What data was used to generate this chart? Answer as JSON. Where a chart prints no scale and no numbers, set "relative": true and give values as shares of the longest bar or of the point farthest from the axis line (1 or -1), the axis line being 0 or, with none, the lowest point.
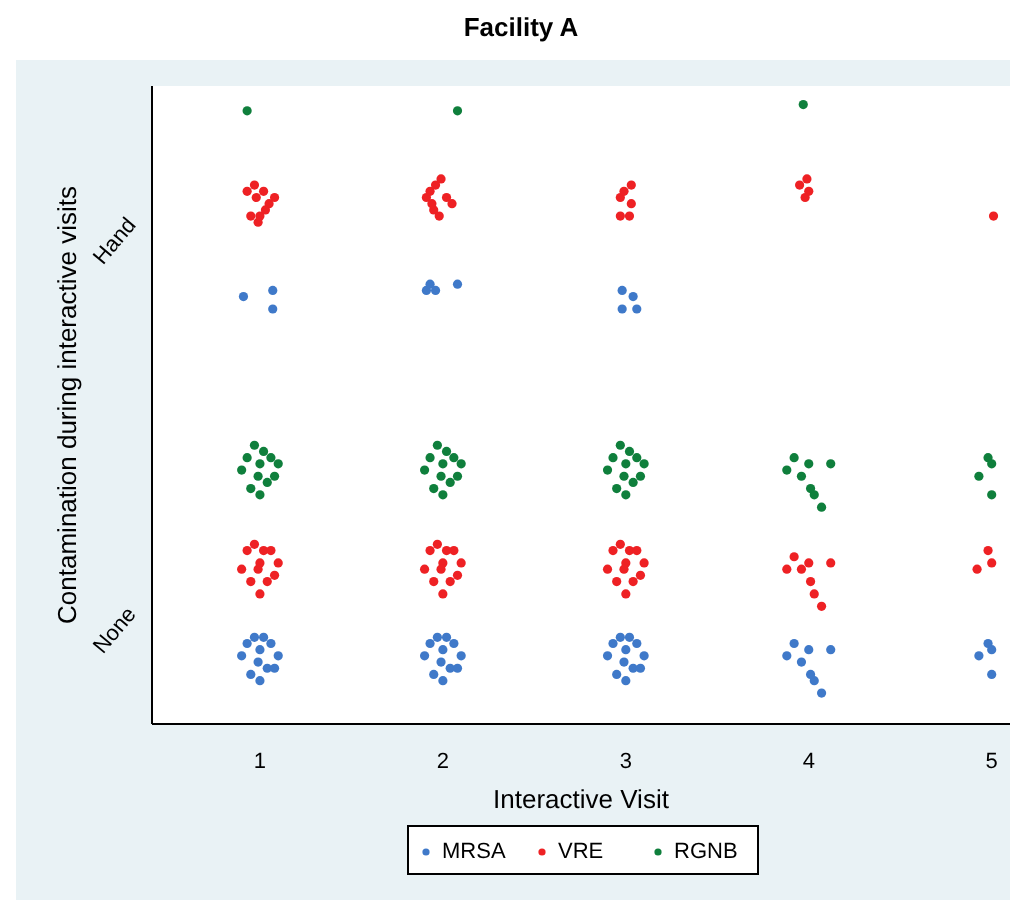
{
  "chart_data": {
    "type": "scatter",
    "title": "Facility A",
    "xlabel": "Interactive Visit",
    "ylabel": "Contamination during interactive visits",
    "xlim": [
      0.41,
      5.1
    ],
    "xticks": [
      1,
      2,
      3,
      4,
      5
    ],
    "relative": true,
    "annotations": [
      "None",
      "Hand"
    ],
    "grid": false,
    "legend": "bottom",
    "marker": "circle",
    "series": [
      {
        "name": "MRSA",
        "color": "#3f79c9",
        "x": [
          0.9,
          0.93,
          0.95,
          0.97,
          1,
          1,
          1.02,
          1.04,
          1.06,
          1.08,
          1.1,
          0.99,
          1.9,
          1.93,
          1.95,
          1.97,
          2,
          2,
          2.02,
          2.04,
          2.06,
          2.08,
          2.1,
          1.99,
          2.9,
          2.93,
          2.95,
          2.97,
          3,
          3,
          3.02,
          3.04,
          3.06,
          3.08,
          3.1,
          2.99,
          3.88,
          3.92,
          3.96,
          4,
          4.03,
          4.07,
          4.12,
          4.01,
          4.93,
          4.98,
          5,
          5,
          0.91,
          1.07,
          1.07,
          1.91,
          1.93,
          1.96,
          2.08,
          2.98,
          3.04,
          3.06,
          2.98
        ],
        "values": [
          0.11,
          0.13,
          0.08,
          0.14,
          0.12,
          0.07,
          0.14,
          0.09,
          0.13,
          0.09,
          0.11,
          0.1,
          0.11,
          0.13,
          0.08,
          0.14,
          0.12,
          0.07,
          0.14,
          0.09,
          0.13,
          0.09,
          0.11,
          0.1,
          0.11,
          0.13,
          0.08,
          0.14,
          0.12,
          0.07,
          0.14,
          0.09,
          0.13,
          0.09,
          0.11,
          0.1,
          0.11,
          0.13,
          0.1,
          0.12,
          0.07,
          0.05,
          0.12,
          0.08,
          0.11,
          0.13,
          0.12,
          0.08,
          0.69,
          0.7,
          0.67,
          0.7,
          0.71,
          0.7,
          0.71,
          0.7,
          0.69,
          0.67,
          0.67
        ]
      },
      {
        "name": "VRE",
        "color": "#ee2124",
        "x": [
          0.9,
          0.93,
          0.95,
          0.97,
          1,
          1,
          1.02,
          1.04,
          1.06,
          1.08,
          1.1,
          0.99,
          1.9,
          1.93,
          1.95,
          1.97,
          2,
          2,
          2.02,
          2.04,
          2.06,
          2.08,
          2.1,
          1.99,
          2.9,
          2.93,
          2.95,
          2.97,
          3,
          3,
          3.02,
          3.04,
          3.06,
          3.08,
          3.1,
          2.99,
          3.88,
          3.92,
          3.96,
          4,
          4.03,
          4.07,
          4.12,
          4.01,
          4.92,
          4.98,
          5,
          0.93,
          0.97,
          0.98,
          1.02,
          1.05,
          1.08,
          1,
          0.95,
          0.99,
          1.03,
          1.91,
          1.93,
          1.96,
          1.99,
          2.02,
          2.05,
          1.95,
          1.98,
          1.94,
          2.97,
          2.99,
          3.03,
          3.03,
          2.97,
          3.02,
          3.95,
          3.99,
          3.98,
          4,
          5.01
        ],
        "values": [
          0.25,
          0.28,
          0.23,
          0.29,
          0.26,
          0.21,
          0.28,
          0.23,
          0.28,
          0.24,
          0.26,
          0.25,
          0.25,
          0.28,
          0.23,
          0.29,
          0.26,
          0.21,
          0.28,
          0.23,
          0.28,
          0.24,
          0.26,
          0.25,
          0.25,
          0.28,
          0.23,
          0.29,
          0.26,
          0.21,
          0.28,
          0.23,
          0.28,
          0.24,
          0.26,
          0.25,
          0.25,
          0.27,
          0.25,
          0.26,
          0.21,
          0.19,
          0.26,
          0.23,
          0.25,
          0.28,
          0.26,
          0.86,
          0.87,
          0.85,
          0.86,
          0.84,
          0.85,
          0.82,
          0.82,
          0.81,
          0.83,
          0.85,
          0.86,
          0.87,
          0.88,
          0.85,
          0.84,
          0.83,
          0.82,
          0.84,
          0.85,
          0.86,
          0.87,
          0.84,
          0.82,
          0.82,
          0.87,
          0.88,
          0.85,
          0.86,
          0.82
        ]
      },
      {
        "name": "RGNB",
        "color": "#0f7f3c",
        "x": [
          0.9,
          0.93,
          0.95,
          0.97,
          1,
          1,
          1.02,
          1.04,
          1.06,
          1.08,
          1.1,
          0.99,
          1.9,
          1.93,
          1.95,
          1.97,
          2,
          2,
          2.02,
          2.04,
          2.06,
          2.08,
          2.1,
          1.99,
          2.9,
          2.93,
          2.95,
          2.97,
          3,
          3,
          3.02,
          3.04,
          3.06,
          3.08,
          3.1,
          2.99,
          3.88,
          3.92,
          3.96,
          4,
          4.03,
          4.07,
          4.12,
          4.01,
          4.93,
          4.98,
          5,
          5,
          0.93,
          2.08,
          3.97
        ],
        "values": [
          0.41,
          0.43,
          0.38,
          0.45,
          0.42,
          0.37,
          0.44,
          0.39,
          0.43,
          0.4,
          0.42,
          0.4,
          0.41,
          0.43,
          0.38,
          0.45,
          0.42,
          0.37,
          0.44,
          0.39,
          0.43,
          0.4,
          0.42,
          0.4,
          0.41,
          0.43,
          0.38,
          0.45,
          0.42,
          0.37,
          0.44,
          0.39,
          0.43,
          0.4,
          0.42,
          0.4,
          0.41,
          0.43,
          0.4,
          0.42,
          0.37,
          0.35,
          0.42,
          0.38,
          0.4,
          0.43,
          0.42,
          0.37,
          0.99,
          0.99,
          1
        ]
      }
    ]
  }
}
